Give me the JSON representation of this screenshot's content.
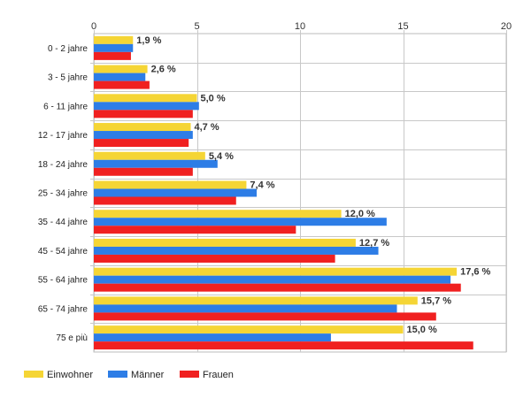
{
  "chart_data": {
    "type": "bar",
    "orientation": "horizontal",
    "categories": [
      "0 - 2 jahre",
      "3 - 5 jahre",
      "6 - 11 jahre",
      "12 - 17 jahre",
      "18 - 24 jahre",
      "25 - 34 jahre",
      "35 - 44 jahre",
      "45 - 54 jahre",
      "55 - 64 jahre",
      "65 - 74 jahre",
      "75 e più"
    ],
    "series": [
      {
        "name": "Einwohner",
        "color": "#f5d535",
        "values": [
          1.9,
          2.6,
          5.0,
          4.7,
          5.4,
          7.4,
          12.0,
          12.7,
          17.6,
          15.7,
          15.0
        ]
      },
      {
        "name": "Männer",
        "color": "#2d7de6",
        "values": [
          1.9,
          2.5,
          5.1,
          4.8,
          6.0,
          7.9,
          14.2,
          13.8,
          17.3,
          14.7,
          11.5
        ]
      },
      {
        "name": "Frauen",
        "color": "#f02020",
        "values": [
          1.8,
          2.7,
          4.8,
          4.6,
          4.8,
          6.9,
          9.8,
          11.7,
          17.8,
          16.6,
          18.4
        ]
      }
    ],
    "data_labels": [
      "1,9 %",
      "2,6 %",
      "5,0 %",
      "4,7 %",
      "5,4 %",
      "7,4 %",
      "12,0 %",
      "12,7 %",
      "17,6 %",
      "15,7 %",
      "15,0 %"
    ],
    "xlim": [
      0,
      20
    ],
    "x_ticks": [
      "0",
      "5",
      "10",
      "15",
      "20"
    ],
    "grid": true,
    "legend_position": "bottom-left"
  }
}
